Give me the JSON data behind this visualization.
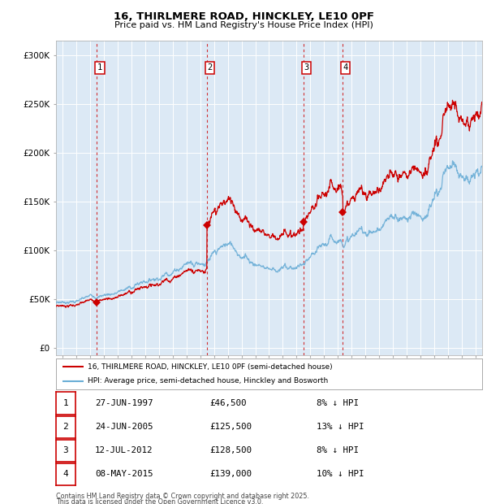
{
  "title_line1": "16, THIRLMERE ROAD, HINCKLEY, LE10 0PF",
  "title_line2": "Price paid vs. HM Land Registry's House Price Index (HPI)",
  "background_color": "#ffffff",
  "plot_bg_color": "#dce9f5",
  "grid_color": "#ffffff",
  "hpi_color": "#6baed6",
  "price_color": "#cc0000",
  "transactions": [
    {
      "num": 1,
      "date_str": "27-JUN-1997",
      "year": 1997.48,
      "price": 46500,
      "pct": "8% ↓ HPI"
    },
    {
      "num": 2,
      "date_str": "24-JUN-2005",
      "year": 2005.48,
      "price": 125500,
      "pct": "13% ↓ HPI"
    },
    {
      "num": 3,
      "date_str": "12-JUL-2012",
      "year": 2012.53,
      "price": 128500,
      "pct": "8% ↓ HPI"
    },
    {
      "num": 4,
      "date_str": "08-MAY-2015",
      "year": 2015.36,
      "price": 139000,
      "pct": "10% ↓ HPI"
    }
  ],
  "legend_price_label": "16, THIRLMERE ROAD, HINCKLEY, LE10 0PF (semi-detached house)",
  "legend_hpi_label": "HPI: Average price, semi-detached house, Hinckley and Bosworth",
  "footer_line1": "Contains HM Land Registry data © Crown copyright and database right 2025.",
  "footer_line2": "This data is licensed under the Open Government Licence v3.0.",
  "yticks": [
    0,
    50000,
    100000,
    150000,
    200000,
    250000,
    300000
  ],
  "ytick_labels": [
    "£0",
    "£50K",
    "£100K",
    "£150K",
    "£200K",
    "£250K",
    "£300K"
  ],
  "xmin": 1994.5,
  "xmax": 2025.5,
  "ymin": -8000,
  "ymax": 315000,
  "table_rows": [
    {
      "num": "1",
      "date": "27-JUN-1997",
      "price": "£46,500",
      "pct": "8% ↓ HPI"
    },
    {
      "num": "2",
      "date": "24-JUN-2005",
      "price": "£125,500",
      "pct": "13% ↓ HPI"
    },
    {
      "num": "3",
      "date": "12-JUL-2012",
      "price": "£128,500",
      "pct": "8% ↓ HPI"
    },
    {
      "num": "4",
      "date": "08-MAY-2015",
      "price": "£139,000",
      "pct": "10% ↓ HPI"
    }
  ]
}
